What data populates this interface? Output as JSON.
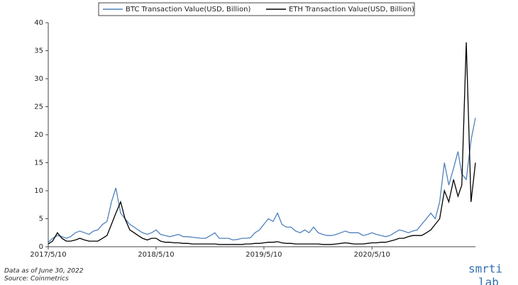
{
  "chart_data": {
    "type": "line",
    "x": [
      "2017/5/10",
      "2017/5/25",
      "2017/6/10",
      "2017/6/25",
      "2017/7/10",
      "2017/7/25",
      "2017/8/10",
      "2017/8/25",
      "2017/9/10",
      "2017/9/25",
      "2017/10/10",
      "2017/10/25",
      "2017/11/10",
      "2017/11/25",
      "2017/12/10",
      "2017/12/25",
      "2018/1/10",
      "2018/1/25",
      "2018/2/10",
      "2018/2/25",
      "2018/3/10",
      "2018/3/25",
      "2018/4/10",
      "2018/4/25",
      "2018/5/10",
      "2018/5/25",
      "2018/6/10",
      "2018/6/25",
      "2018/7/10",
      "2018/7/25",
      "2018/8/10",
      "2018/8/25",
      "2018/9/10",
      "2018/9/25",
      "2018/10/10",
      "2018/10/25",
      "2018/11/10",
      "2018/11/25",
      "2018/12/10",
      "2018/12/25",
      "2019/1/10",
      "2019/1/25",
      "2019/2/10",
      "2019/2/25",
      "2019/3/10",
      "2019/3/25",
      "2019/4/10",
      "2019/4/25",
      "2019/5/10",
      "2019/5/25",
      "2019/6/10",
      "2019/6/25",
      "2019/7/10",
      "2019/7/25",
      "2019/8/10",
      "2019/8/25",
      "2019/9/10",
      "2019/9/25",
      "2019/10/10",
      "2019/10/25",
      "2019/11/10",
      "2019/11/25",
      "2019/12/10",
      "2019/12/25",
      "2020/1/10",
      "2020/1/25",
      "2020/2/10",
      "2020/2/25",
      "2020/3/10",
      "2020/3/25",
      "2020/4/10",
      "2020/4/25",
      "2020/5/10",
      "2020/5/25",
      "2020/6/10",
      "2020/6/25",
      "2020/7/10",
      "2020/7/25",
      "2020/8/10",
      "2020/8/25",
      "2020/9/10",
      "2020/9/25",
      "2020/10/10",
      "2020/10/25",
      "2020/11/10",
      "2020/11/25",
      "2020/12/10",
      "2020/12/25",
      "2021/1/10",
      "2021/1/25",
      "2021/2/10",
      "2021/2/25",
      "2021/3/10",
      "2021/3/25",
      "2021/4/10",
      "2021/4/25"
    ],
    "series": [
      {
        "name": "BTC Transaction Value(USD, Billion)",
        "color": "#4f81bd",
        "values": [
          0.8,
          1.5,
          2,
          1.8,
          1.5,
          1.8,
          2.5,
          2.8,
          2.5,
          2.2,
          2.8,
          3,
          4,
          4.5,
          8,
          10.5,
          6,
          5,
          4,
          3.5,
          3,
          2.5,
          2.2,
          2.5,
          3,
          2.2,
          2,
          1.8,
          2,
          2.2,
          1.8,
          1.8,
          1.7,
          1.6,
          1.5,
          1.5,
          2,
          2.5,
          1.5,
          1.5,
          1.5,
          1.2,
          1.3,
          1.5,
          1.5,
          1.6,
          2.5,
          3,
          4,
          5,
          4.5,
          6,
          4,
          3.5,
          3.5,
          2.8,
          2.5,
          3,
          2.5,
          3.5,
          2.5,
          2.2,
          2,
          2,
          2.2,
          2.5,
          2.8,
          2.5,
          2.5,
          2.5,
          2,
          2.2,
          2.5,
          2.2,
          2,
          1.8,
          2,
          2.5,
          3,
          2.8,
          2.5,
          2.8,
          3,
          4,
          5,
          6,
          5,
          8,
          15,
          11,
          14,
          17,
          13,
          12,
          19,
          23
        ]
      },
      {
        "name": "ETH Transaction Value(USD, Billion)",
        "color": "#000000",
        "values": [
          0.5,
          1,
          2.5,
          1.5,
          1,
          1,
          1.2,
          1.5,
          1.2,
          1,
          1,
          1,
          1.5,
          2,
          4,
          6,
          8,
          5,
          3,
          2.5,
          2,
          1.5,
          1.2,
          1.5,
          1.5,
          1,
          0.8,
          0.8,
          0.7,
          0.7,
          0.6,
          0.6,
          0.5,
          0.5,
          0.5,
          0.5,
          0.5,
          0.5,
          0.4,
          0.4,
          0.4,
          0.4,
          0.4,
          0.4,
          0.5,
          0.5,
          0.6,
          0.6,
          0.7,
          0.8,
          0.8,
          0.9,
          0.7,
          0.6,
          0.6,
          0.5,
          0.5,
          0.5,
          0.5,
          0.5,
          0.5,
          0.4,
          0.4,
          0.4,
          0.5,
          0.6,
          0.7,
          0.6,
          0.5,
          0.5,
          0.5,
          0.6,
          0.7,
          0.7,
          0.8,
          0.8,
          1,
          1.2,
          1.5,
          1.5,
          1.8,
          2,
          2,
          2,
          2.5,
          3,
          4,
          5,
          10,
          8,
          12,
          9,
          11,
          36.5,
          8,
          15
        ]
      }
    ],
    "xlim": [
      "2017/5/10",
      "2021/4/25"
    ],
    "xticks": [
      "2017/5/10",
      "2018/5/10",
      "2019/5/10",
      "2020/5/10"
    ],
    "ylim": [
      0,
      40
    ],
    "yticks": [
      0,
      5,
      10,
      15,
      20,
      25,
      30,
      35,
      40
    ],
    "legend": "top",
    "notes": [
      "Data as of June 30, 2022",
      "Source: Coinmetrics"
    ],
    "logo": [
      "smrti",
      "lab"
    ]
  }
}
